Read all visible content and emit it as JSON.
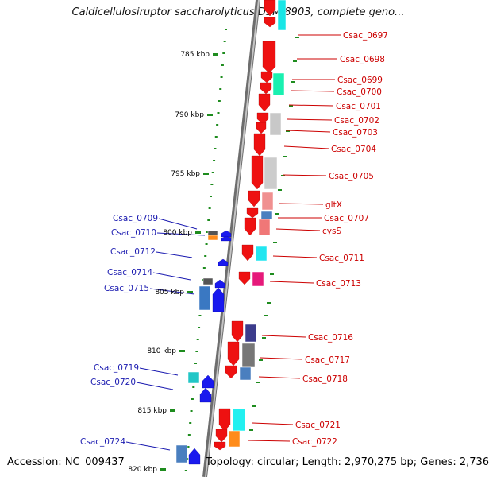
{
  "title": "Caldicellulosiruptor saccharolyticus DSM 8903, complete geno...",
  "footer": {
    "accession": "Accession: NC_009437",
    "topology": "Topology: circular; Length: 2,970,275 bp; Genes: 2,736"
  },
  "colors": {
    "backbone": "#9a9a9a",
    "scale_ticks": "#1e8c1e",
    "forward_gene": "#ee1111",
    "reverse_gene": "#1a1aee",
    "forward_label": "#cc0000",
    "reverse_label": "#1a1ab0",
    "right_dots": "#1e8c1e",
    "scale_label": "#000000"
  },
  "scale": {
    "labels": [
      "785 kbp",
      "790 kbp",
      "795 kbp",
      "800 kbp",
      "805 kbp",
      "810 kbp",
      "815 kbp",
      "820 kbp"
    ]
  },
  "genes_right": [
    {
      "label": "Csac_0697"
    },
    {
      "label": "Csac_0698"
    },
    {
      "label": "Csac_0699"
    },
    {
      "label": "Csac_0700"
    },
    {
      "label": "Csac_0701"
    },
    {
      "label": "Csac_0702"
    },
    {
      "label": "Csac_0703"
    },
    {
      "label": "Csac_0704"
    },
    {
      "label": "Csac_0705"
    },
    {
      "label": "gltX"
    },
    {
      "label": "Csac_0707"
    },
    {
      "label": "cysS"
    },
    {
      "label": "Csac_0711"
    },
    {
      "label": "Csac_0713"
    },
    {
      "label": "Csac_0716"
    },
    {
      "label": "Csac_0717"
    },
    {
      "label": "Csac_0718"
    },
    {
      "label": "Csac_0721"
    },
    {
      "label": "Csac_0722"
    }
  ],
  "genes_left": [
    {
      "label": "Csac_0709"
    },
    {
      "label": "Csac_0710"
    },
    {
      "label": "Csac_0712"
    },
    {
      "label": "Csac_0714"
    },
    {
      "label": "Csac_0715"
    },
    {
      "label": "Csac_0719"
    },
    {
      "label": "Csac_0720"
    },
    {
      "label": "Csac_0724"
    }
  ]
}
